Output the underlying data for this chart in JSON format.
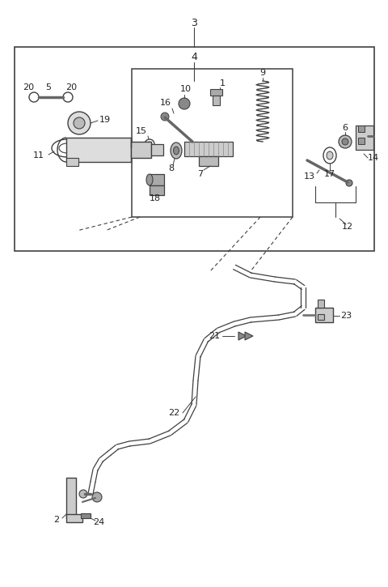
{
  "bg_color": "#ffffff",
  "line_color": "#404040",
  "fig_width": 4.8,
  "fig_height": 7.25,
  "dpi": 100
}
